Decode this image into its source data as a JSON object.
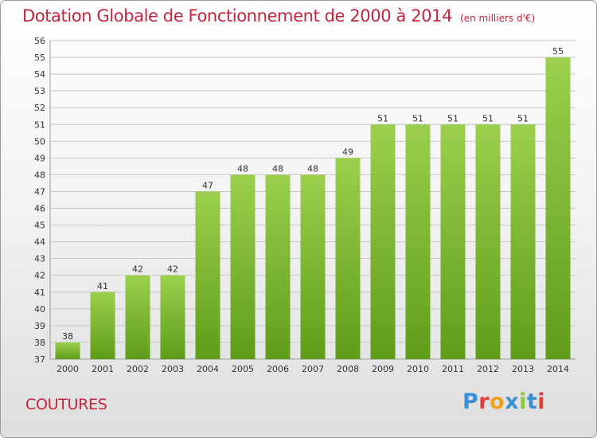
{
  "header": {
    "title": "Dotation Globale de Fonctionnement de 2000 à 2014",
    "unit_note": "(en milliers d'€)"
  },
  "footer": {
    "commune": "COUTURES",
    "logo_text": "Proxiti",
    "logo_colors": [
      "#3b8fd4",
      "#e0403a",
      "#f0a020",
      "#3b8fd4",
      "#8bc63e",
      "#3b8fd4",
      "#e0403a"
    ]
  },
  "colors": {
    "bar_light": "#9ccf4e",
    "bar_dark": "#5f9c1a",
    "grid": "#c6c6c6",
    "title": "#c4263f"
  },
  "chart_data": {
    "type": "bar",
    "title": "Dotation Globale de Fonctionnement de 2000 à 2014",
    "subtitle": "(en milliers d'€)",
    "xlabel": "",
    "ylabel": "",
    "categories": [
      "2000",
      "2001",
      "2002",
      "2003",
      "2004",
      "2005",
      "2006",
      "2007",
      "2008",
      "2009",
      "2010",
      "2011",
      "2012",
      "2013",
      "2014"
    ],
    "values": [
      38,
      41,
      42,
      42,
      47,
      48,
      48,
      48,
      49,
      51,
      51,
      51,
      51,
      51,
      55
    ],
    "ylim": [
      37,
      56
    ],
    "yticks": [
      37,
      38,
      39,
      40,
      41,
      42,
      43,
      44,
      45,
      46,
      47,
      48,
      49,
      50,
      51,
      52,
      53,
      54,
      55,
      56
    ],
    "grid": true,
    "data_labels": true
  }
}
